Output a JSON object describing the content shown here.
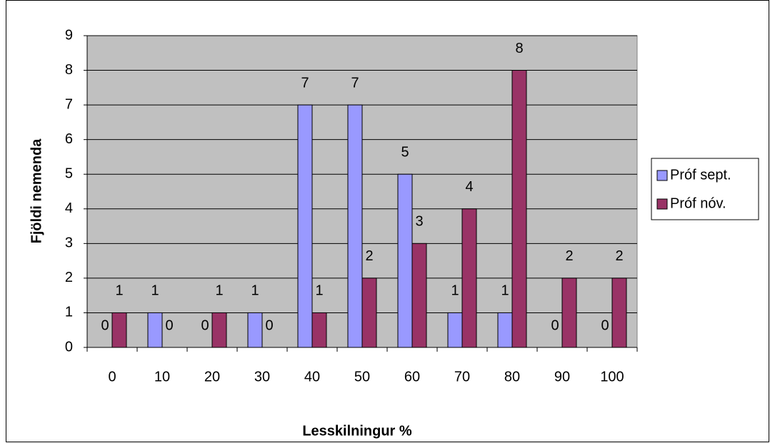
{
  "chart_data": {
    "type": "bar",
    "x_label": "Lesskilningur %",
    "y_label": "Fjöldi nemenda",
    "categories": [
      "0",
      "10",
      "20",
      "30",
      "40",
      "50",
      "60",
      "70",
      "80",
      "90",
      "100"
    ],
    "series": [
      {
        "name": "Próf sept.",
        "color": "#9999ff",
        "values": [
          0,
          1,
          0,
          1,
          7,
          7,
          5,
          1,
          1,
          0,
          0
        ]
      },
      {
        "name": "Próf nóv.",
        "color": "#993366",
        "values": [
          1,
          0,
          1,
          0,
          1,
          2,
          3,
          4,
          8,
          2,
          2
        ]
      }
    ],
    "ylim": [
      0,
      9
    ],
    "yticks": [
      0,
      1,
      2,
      3,
      4,
      5,
      6,
      7,
      8,
      9
    ],
    "grid": true,
    "legend": "right",
    "plot_background": "#c0c0c0"
  }
}
